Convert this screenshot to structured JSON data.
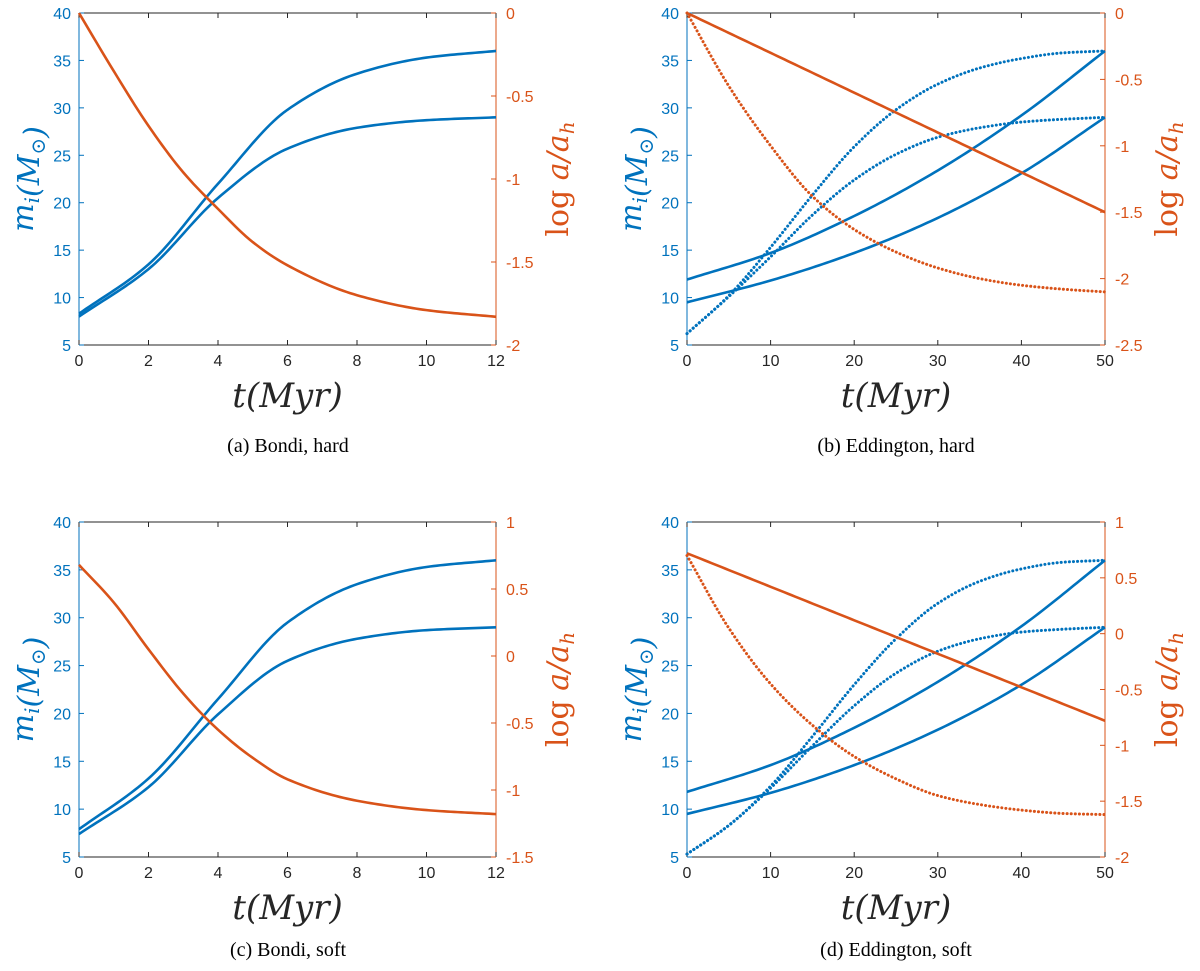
{
  "colors": {
    "mass": "#0072bd",
    "separation": "#d95319",
    "axis": "#262626"
  },
  "chart_data": [
    {
      "type": "line",
      "caption": "(a) Bondi, hard",
      "xlabel": "t(Myr)",
      "ylabel_left": "m_i(M_⊙)",
      "ylabel_right": "log a/a_h",
      "xlim": [
        0,
        12
      ],
      "ylim_left": [
        5,
        40
      ],
      "ylim_right": [
        -2,
        0
      ],
      "xticks": [
        "0",
        "2",
        "4",
        "6",
        "8",
        "10",
        "12"
      ],
      "yticks_left": [
        "5",
        "10",
        "15",
        "20",
        "25",
        "30",
        "35",
        "40"
      ],
      "yticks_right": [
        "-2",
        "-1.5",
        "-1",
        "-0.5",
        "0"
      ],
      "series": [
        {
          "axis": "left",
          "style": "solid",
          "x": [
            0,
            2,
            4,
            6,
            8,
            10,
            12
          ],
          "y": [
            8.3,
            13.5,
            22.0,
            29.8,
            33.6,
            35.3,
            36.0
          ]
        },
        {
          "axis": "left",
          "style": "solid",
          "x": [
            0,
            2,
            4,
            6,
            8,
            10,
            12
          ],
          "y": [
            8.0,
            13.0,
            20.5,
            25.7,
            27.9,
            28.7,
            29.0
          ]
        },
        {
          "axis": "right",
          "style": "solid",
          "x": [
            0,
            1,
            2,
            3,
            4,
            5,
            6,
            8,
            10,
            12
          ],
          "y": [
            0,
            -0.35,
            -0.68,
            -0.96,
            -1.18,
            -1.38,
            -1.52,
            -1.7,
            -1.79,
            -1.83
          ]
        }
      ]
    },
    {
      "type": "line",
      "caption": "(b) Eddington, hard",
      "xlabel": "t(Myr)",
      "ylabel_left": "m_i(M_⊙)",
      "ylabel_right": "log a/a_h",
      "xlim": [
        0,
        50
      ],
      "ylim_left": [
        5,
        40
      ],
      "ylim_right": [
        -2.5,
        0
      ],
      "xticks": [
        "0",
        "10",
        "20",
        "30",
        "40",
        "50"
      ],
      "yticks_left": [
        "5",
        "10",
        "15",
        "20",
        "25",
        "30",
        "35",
        "40"
      ],
      "yticks_right": [
        "-2.5",
        "-2",
        "-1.5",
        "-1",
        "-0.5",
        "0"
      ],
      "series": [
        {
          "axis": "left",
          "style": "solid",
          "x": [
            0,
            10,
            20,
            30,
            40,
            50
          ],
          "y": [
            11.9,
            14.7,
            18.6,
            23.4,
            29.2,
            36.0
          ]
        },
        {
          "axis": "left",
          "style": "solid",
          "x": [
            0,
            10,
            20,
            30,
            40,
            50
          ],
          "y": [
            9.5,
            11.8,
            14.7,
            18.4,
            23.1,
            29.0
          ]
        },
        {
          "axis": "left",
          "style": "dotted",
          "x": [
            0,
            5,
            10,
            15,
            20,
            25,
            30,
            35,
            40,
            45,
            50
          ],
          "y": [
            6.2,
            10.2,
            15.3,
            20.8,
            25.9,
            29.8,
            32.5,
            34.2,
            35.2,
            35.8,
            36.0
          ]
        },
        {
          "axis": "left",
          "style": "dotted",
          "x": [
            0,
            5,
            10,
            15,
            20,
            25,
            30,
            35,
            40,
            45,
            50
          ],
          "y": [
            6.2,
            10.1,
            14.3,
            18.7,
            22.4,
            25.1,
            26.9,
            27.9,
            28.5,
            28.8,
            29.0
          ]
        },
        {
          "axis": "right",
          "style": "solid",
          "x": [
            0,
            50
          ],
          "y": [
            0,
            -1.5
          ]
        },
        {
          "axis": "right",
          "style": "dotted",
          "x": [
            0,
            5,
            10,
            15,
            20,
            25,
            30,
            35,
            40,
            45,
            50
          ],
          "y": [
            0,
            -0.55,
            -1.0,
            -1.38,
            -1.63,
            -1.8,
            -1.92,
            -2.0,
            -2.05,
            -2.08,
            -2.1
          ]
        }
      ]
    },
    {
      "type": "line",
      "caption": "(c) Bondi, soft",
      "xlabel": "t(Myr)",
      "ylabel_left": "m_i(M_⊙)",
      "ylabel_right": "log a/a_h",
      "xlim": [
        0,
        12
      ],
      "ylim_left": [
        5,
        40
      ],
      "ylim_right": [
        -1.5,
        1
      ],
      "xticks": [
        "0",
        "2",
        "4",
        "6",
        "8",
        "10",
        "12"
      ],
      "yticks_left": [
        "5",
        "10",
        "15",
        "20",
        "25",
        "30",
        "35",
        "40"
      ],
      "yticks_right": [
        "-1.5",
        "-1",
        "-0.5",
        "0",
        "0.5",
        "1"
      ],
      "series": [
        {
          "axis": "left",
          "style": "solid",
          "x": [
            0,
            2,
            4,
            6,
            8,
            10,
            12
          ],
          "y": [
            7.9,
            13.2,
            21.5,
            29.5,
            33.5,
            35.3,
            36.0
          ]
        },
        {
          "axis": "left",
          "style": "solid",
          "x": [
            0,
            2,
            4,
            6,
            8,
            10,
            12
          ],
          "y": [
            7.4,
            12.3,
            19.9,
            25.5,
            27.8,
            28.7,
            29.0
          ]
        },
        {
          "axis": "right",
          "style": "solid",
          "x": [
            0,
            1,
            2,
            3,
            4,
            5,
            6,
            8,
            10,
            12
          ],
          "y": [
            0.68,
            0.4,
            0.05,
            -0.28,
            -0.55,
            -0.76,
            -0.92,
            -1.08,
            -1.15,
            -1.18
          ]
        }
      ]
    },
    {
      "type": "line",
      "caption": "(d) Eddington, soft",
      "xlabel": "t(Myr)",
      "ylabel_left": "m_i(M_⊙)",
      "ylabel_right": "log a/a_h",
      "xlim": [
        0,
        50
      ],
      "ylim_left": [
        5,
        40
      ],
      "ylim_right": [
        -2,
        1
      ],
      "xticks": [
        "0",
        "10",
        "20",
        "30",
        "40",
        "50"
      ],
      "yticks_left": [
        "5",
        "10",
        "15",
        "20",
        "25",
        "30",
        "35",
        "40"
      ],
      "yticks_right": [
        "-2",
        "-1.5",
        "-1",
        "-0.5",
        "0",
        "0.5",
        "1"
      ],
      "series": [
        {
          "axis": "left",
          "style": "solid",
          "x": [
            0,
            10,
            20,
            30,
            40,
            50
          ],
          "y": [
            11.8,
            14.6,
            18.5,
            23.3,
            29.1,
            36.0
          ]
        },
        {
          "axis": "left",
          "style": "solid",
          "x": [
            0,
            10,
            20,
            30,
            40,
            50
          ],
          "y": [
            9.5,
            11.7,
            14.6,
            18.3,
            23.0,
            29.0
          ]
        },
        {
          "axis": "left",
          "style": "dotted",
          "x": [
            0,
            5,
            10,
            15,
            20,
            25,
            30,
            35,
            40,
            45,
            50
          ],
          "y": [
            5.3,
            8.3,
            12.4,
            17.6,
            23.0,
            27.8,
            31.5,
            33.8,
            35.1,
            35.8,
            36.0
          ]
        },
        {
          "axis": "left",
          "style": "dotted",
          "x": [
            0,
            5,
            10,
            15,
            20,
            25,
            30,
            35,
            40,
            45,
            50
          ],
          "y": [
            5.3,
            8.3,
            12.2,
            16.6,
            20.8,
            24.2,
            26.5,
            27.8,
            28.5,
            28.8,
            29.0
          ]
        },
        {
          "axis": "right",
          "style": "solid",
          "x": [
            0,
            50
          ],
          "y": [
            0.72,
            -0.78
          ]
        },
        {
          "axis": "right",
          "style": "dotted",
          "x": [
            0,
            5,
            10,
            15,
            20,
            25,
            30,
            35,
            40,
            45,
            50
          ],
          "y": [
            0.7,
            0.05,
            -0.45,
            -0.82,
            -1.1,
            -1.3,
            -1.45,
            -1.53,
            -1.58,
            -1.61,
            -1.62
          ]
        }
      ]
    }
  ]
}
